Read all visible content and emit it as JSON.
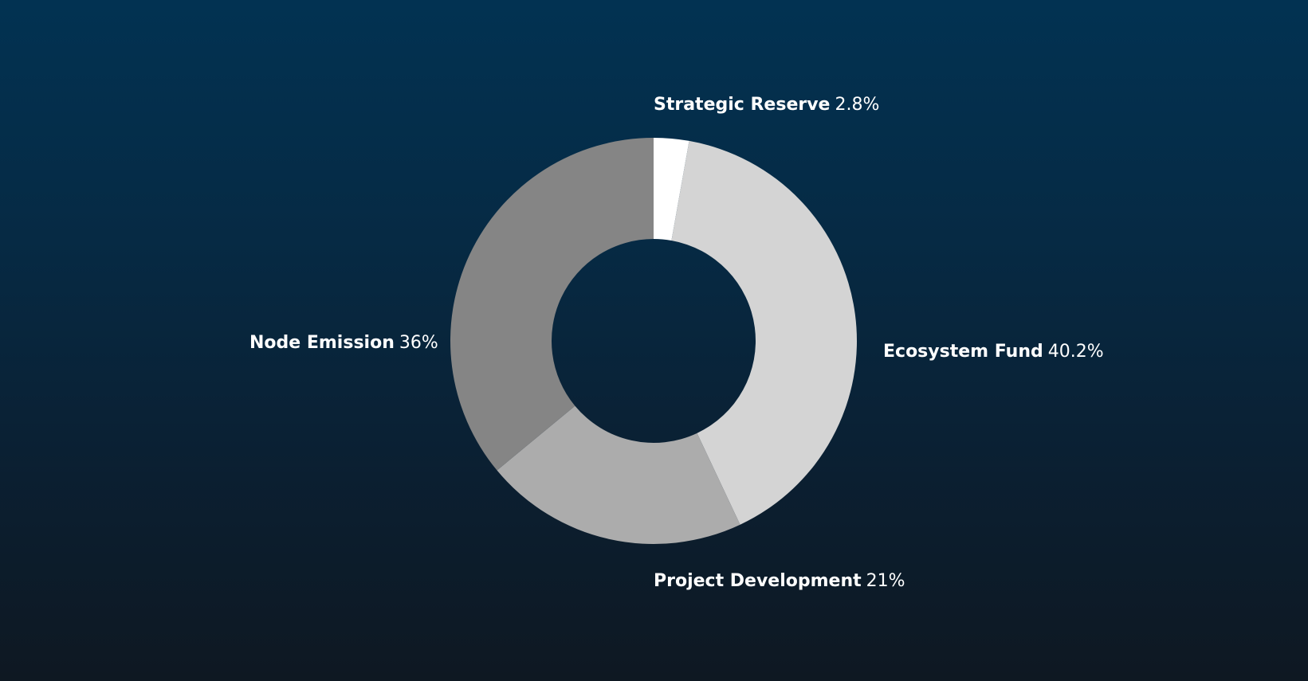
{
  "colors": {
    "background_top": "#023252",
    "background_bottom": "#0e1822",
    "label_text": "#ffffff"
  },
  "chart_data": {
    "type": "pie",
    "variant": "donut",
    "title": "",
    "categories": [
      "Strategic Reserve",
      "Ecosystem Fund",
      "Project Development",
      "Node Emission"
    ],
    "values": [
      2.8,
      40.2,
      21,
      36
    ],
    "unit": "%",
    "slice_colors": [
      "#ffffff",
      "#d4d4d4",
      "#acacac",
      "#858585"
    ],
    "labels": [
      {
        "name": "Strategic Reserve",
        "value": "2.8%"
      },
      {
        "name": "Ecosystem Fund",
        "value": "40.2%"
      },
      {
        "name": "Project Development",
        "value": "21%"
      },
      {
        "name": "Node Emission",
        "value": "36%"
      }
    ],
    "start_angle": "12 o'clock",
    "direction": "clockwise",
    "legend": "none"
  }
}
